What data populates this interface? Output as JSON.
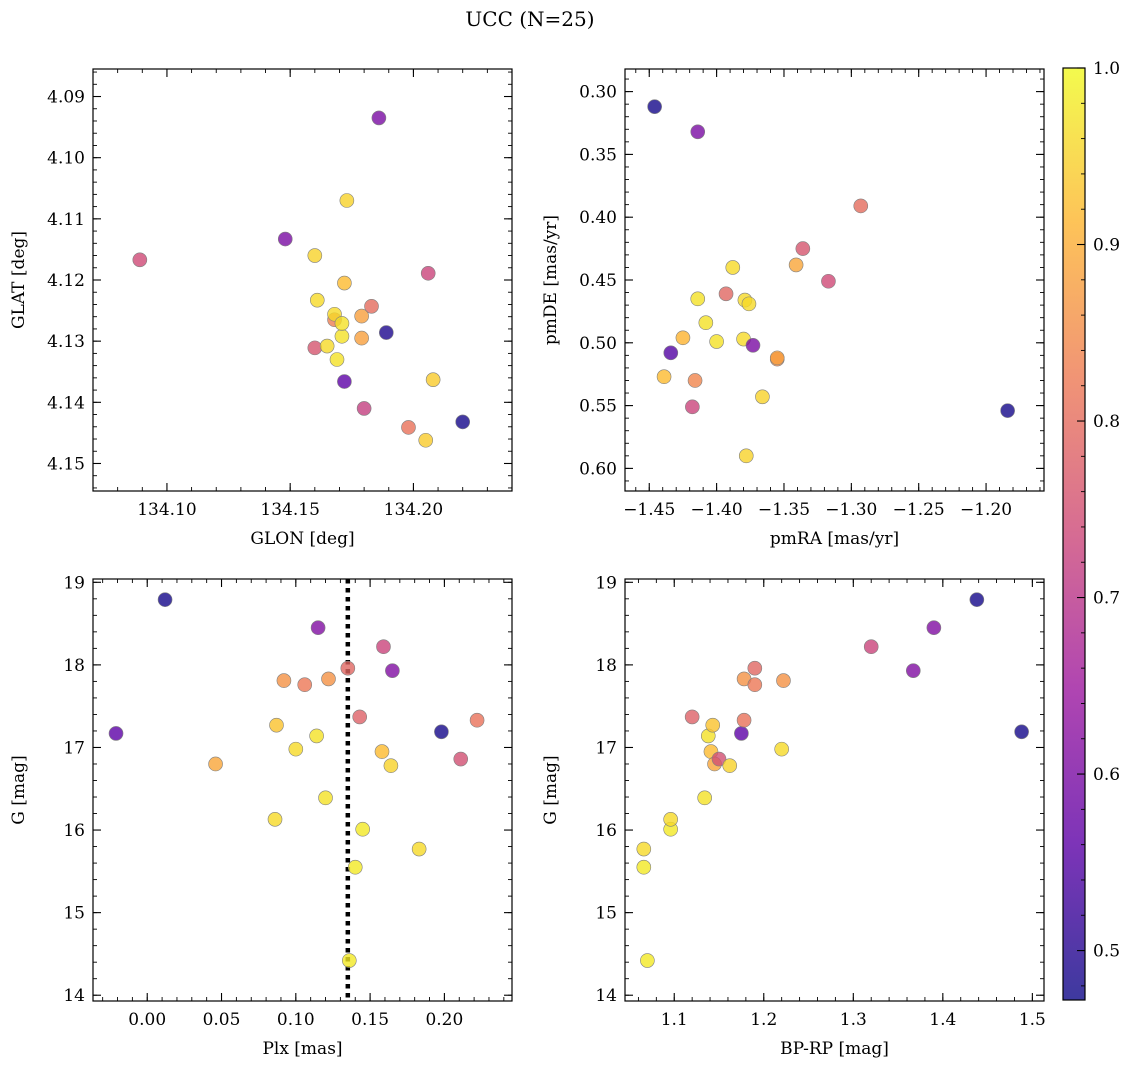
{
  "figure": {
    "title": "UCC (N=25)",
    "colormap": [
      "#0d0887",
      "#5c01a6",
      "#9c179e",
      "#cc4778",
      "#ed7953",
      "#fdb42f",
      "#f0f921"
    ],
    "marker_alpha": 0.8,
    "marker_edge_color": "#808080"
  },
  "chart_data": [
    {
      "type": "scatter",
      "xlabel": "GLON [deg]",
      "ylabel": "GLAT [deg]",
      "xlim": [
        134.07,
        134.24
      ],
      "ylim": [
        4.0855,
        4.1545
      ],
      "xticks": [
        134.1,
        134.15,
        134.2
      ],
      "xtick_labels": [
        "134.10",
        "134.15",
        "134.20"
      ],
      "yticks": [
        4.09,
        4.1,
        4.11,
        4.12,
        4.13,
        4.14,
        4.15
      ],
      "ytick_labels": [
        "4.09",
        "4.10",
        "4.11",
        "4.12",
        "4.13",
        "4.14",
        "4.15"
      ],
      "points": [
        {
          "x": 134.089,
          "y": 4.1167,
          "c": 0.74
        },
        {
          "x": 134.148,
          "y": 4.1133,
          "c": 0.6
        },
        {
          "x": 134.16,
          "y": 4.116,
          "c": 0.95
        },
        {
          "x": 134.16,
          "y": 4.1311,
          "c": 0.76
        },
        {
          "x": 134.161,
          "y": 4.1233,
          "c": 0.96
        },
        {
          "x": 134.165,
          "y": 4.1308,
          "c": 0.96
        },
        {
          "x": 134.168,
          "y": 4.1265,
          "c": 0.83
        },
        {
          "x": 134.168,
          "y": 4.1256,
          "c": 0.96
        },
        {
          "x": 134.169,
          "y": 4.133,
          "c": 0.97
        },
        {
          "x": 134.171,
          "y": 4.1292,
          "c": 0.97
        },
        {
          "x": 134.171,
          "y": 4.1271,
          "c": 0.97
        },
        {
          "x": 134.172,
          "y": 4.1366,
          "c": 0.56
        },
        {
          "x": 134.172,
          "y": 4.1205,
          "c": 0.92
        },
        {
          "x": 134.173,
          "y": 4.107,
          "c": 0.95
        },
        {
          "x": 134.179,
          "y": 4.1295,
          "c": 0.88
        },
        {
          "x": 134.179,
          "y": 4.1259,
          "c": 0.88
        },
        {
          "x": 134.18,
          "y": 4.141,
          "c": 0.72
        },
        {
          "x": 134.183,
          "y": 4.1243,
          "c": 0.8
        },
        {
          "x": 134.186,
          "y": 4.0935,
          "c": 0.6
        },
        {
          "x": 134.189,
          "y": 4.1286,
          "c": 0.49
        },
        {
          "x": 134.198,
          "y": 4.1441,
          "c": 0.81
        },
        {
          "x": 134.205,
          "y": 4.1462,
          "c": 0.94
        },
        {
          "x": 134.206,
          "y": 4.1189,
          "c": 0.73
        },
        {
          "x": 134.208,
          "y": 4.1363,
          "c": 0.94
        },
        {
          "x": 134.22,
          "y": 4.1432,
          "c": 0.48
        }
      ]
    },
    {
      "type": "scatter",
      "xlabel": "pmRA [mas/yr]",
      "ylabel": "pmDE [mas/yr]",
      "xlim": [
        -1.468,
        -1.157
      ],
      "ylim": [
        0.282,
        0.618
      ],
      "xticks": [
        -1.45,
        -1.4,
        -1.35,
        -1.3,
        -1.25,
        -1.2
      ],
      "xtick_labels": [
        "−1.45",
        "−1.40",
        "−1.35",
        "−1.30",
        "−1.25",
        "−1.20"
      ],
      "yticks": [
        0.3,
        0.35,
        0.4,
        0.45,
        0.5,
        0.55,
        0.6
      ],
      "ytick_labels": [
        "0.30",
        "0.35",
        "0.40",
        "0.45",
        "0.50",
        "0.55",
        "0.60"
      ],
      "points": [
        {
          "x": -1.446,
          "y": 0.312,
          "c": 0.48
        },
        {
          "x": -1.439,
          "y": 0.527,
          "c": 0.92
        },
        {
          "x": -1.434,
          "y": 0.508,
          "c": 0.55
        },
        {
          "x": -1.425,
          "y": 0.496,
          "c": 0.91
        },
        {
          "x": -1.418,
          "y": 0.551,
          "c": 0.73
        },
        {
          "x": -1.416,
          "y": 0.53,
          "c": 0.84
        },
        {
          "x": -1.414,
          "y": 0.332,
          "c": 0.6
        },
        {
          "x": -1.414,
          "y": 0.465,
          "c": 0.97
        },
        {
          "x": -1.408,
          "y": 0.484,
          "c": 0.97
        },
        {
          "x": -1.4,
          "y": 0.499,
          "c": 0.97
        },
        {
          "x": -1.393,
          "y": 0.461,
          "c": 0.79
        },
        {
          "x": -1.388,
          "y": 0.44,
          "c": 0.96
        },
        {
          "x": -1.38,
          "y": 0.497,
          "c": 0.96
        },
        {
          "x": -1.379,
          "y": 0.466,
          "c": 0.96
        },
        {
          "x": -1.378,
          "y": 0.59,
          "c": 0.95
        },
        {
          "x": -1.376,
          "y": 0.469,
          "c": 0.96
        },
        {
          "x": -1.373,
          "y": 0.502,
          "c": 0.6
        },
        {
          "x": -1.366,
          "y": 0.543,
          "c": 0.95
        },
        {
          "x": -1.355,
          "y": 0.513,
          "c": 0.85
        },
        {
          "x": -1.355,
          "y": 0.512,
          "c": 0.88
        },
        {
          "x": -1.341,
          "y": 0.438,
          "c": 0.89
        },
        {
          "x": -1.336,
          "y": 0.425,
          "c": 0.76
        },
        {
          "x": -1.317,
          "y": 0.451,
          "c": 0.74
        },
        {
          "x": -1.293,
          "y": 0.391,
          "c": 0.8
        },
        {
          "x": -1.184,
          "y": 0.554,
          "c": 0.48
        }
      ]
    },
    {
      "type": "scatter",
      "xlabel": "Plx [mas]",
      "ylabel": "G [mag]",
      "xlim": [
        -0.0365,
        0.2455
      ],
      "ylim": [
        19.04,
        13.93
      ],
      "vline": 0.135,
      "xticks": [
        0.0,
        0.05,
        0.1,
        0.15,
        0.2
      ],
      "xtick_labels": [
        "0.00",
        "0.05",
        "0.10",
        "0.15",
        "0.20"
      ],
      "yticks": [
        14,
        15,
        16,
        17,
        18,
        19
      ],
      "ytick_labels": [
        "14",
        "15",
        "16",
        "17",
        "18",
        "19"
      ],
      "points": [
        {
          "x": -0.021,
          "y": 17.17,
          "c": 0.56
        },
        {
          "x": 0.012,
          "y": 18.79,
          "c": 0.48
        },
        {
          "x": 0.046,
          "y": 16.8,
          "c": 0.89
        },
        {
          "x": 0.086,
          "y": 16.13,
          "c": 0.96
        },
        {
          "x": 0.087,
          "y": 17.27,
          "c": 0.93
        },
        {
          "x": 0.092,
          "y": 17.81,
          "c": 0.86
        },
        {
          "x": 0.1,
          "y": 16.98,
          "c": 0.96
        },
        {
          "x": 0.106,
          "y": 17.76,
          "c": 0.82
        },
        {
          "x": 0.114,
          "y": 17.14,
          "c": 0.97
        },
        {
          "x": 0.115,
          "y": 18.45,
          "c": 0.61
        },
        {
          "x": 0.12,
          "y": 16.39,
          "c": 0.97
        },
        {
          "x": 0.122,
          "y": 17.83,
          "c": 0.86
        },
        {
          "x": 0.135,
          "y": 17.96,
          "c": 0.79
        },
        {
          "x": 0.136,
          "y": 14.42,
          "c": 0.98
        },
        {
          "x": 0.14,
          "y": 15.55,
          "c": 0.98
        },
        {
          "x": 0.143,
          "y": 17.37,
          "c": 0.78
        },
        {
          "x": 0.145,
          "y": 16.01,
          "c": 0.98
        },
        {
          "x": 0.158,
          "y": 16.95,
          "c": 0.92
        },
        {
          "x": 0.159,
          "y": 18.22,
          "c": 0.73
        },
        {
          "x": 0.164,
          "y": 16.78,
          "c": 0.95
        },
        {
          "x": 0.165,
          "y": 17.93,
          "c": 0.61
        },
        {
          "x": 0.183,
          "y": 15.77,
          "c": 0.96
        },
        {
          "x": 0.198,
          "y": 17.19,
          "c": 0.48
        },
        {
          "x": 0.211,
          "y": 16.86,
          "c": 0.75
        },
        {
          "x": 0.222,
          "y": 17.33,
          "c": 0.81
        }
      ]
    },
    {
      "type": "scatter",
      "xlabel": "BP-RP [mag]",
      "ylabel": "G [mag]",
      "xlim": [
        1.045,
        1.513
      ],
      "ylim": [
        19.04,
        13.93
      ],
      "xticks": [
        1.1,
        1.2,
        1.3,
        1.4,
        1.5
      ],
      "xtick_labels": [
        "1.1",
        "1.2",
        "1.3",
        "1.4",
        "1.5"
      ],
      "yticks": [
        14,
        15,
        16,
        17,
        18,
        19
      ],
      "ytick_labels": [
        "14",
        "15",
        "16",
        "17",
        "18",
        "19"
      ],
      "points": [
        {
          "x": 1.07,
          "y": 14.42,
          "c": 0.98
        },
        {
          "x": 1.066,
          "y": 15.55,
          "c": 0.98
        },
        {
          "x": 1.066,
          "y": 15.77,
          "c": 0.96
        },
        {
          "x": 1.096,
          "y": 16.01,
          "c": 0.98
        },
        {
          "x": 1.096,
          "y": 16.13,
          "c": 0.96
        },
        {
          "x": 1.134,
          "y": 16.39,
          "c": 0.97
        },
        {
          "x": 1.12,
          "y": 17.37,
          "c": 0.78
        },
        {
          "x": 1.138,
          "y": 17.14,
          "c": 0.97
        },
        {
          "x": 1.141,
          "y": 16.95,
          "c": 0.92
        },
        {
          "x": 1.143,
          "y": 17.27,
          "c": 0.93
        },
        {
          "x": 1.145,
          "y": 16.8,
          "c": 0.89
        },
        {
          "x": 1.15,
          "y": 16.86,
          "c": 0.75
        },
        {
          "x": 1.162,
          "y": 16.78,
          "c": 0.95
        },
        {
          "x": 1.175,
          "y": 17.17,
          "c": 0.56
        },
        {
          "x": 1.178,
          "y": 17.33,
          "c": 0.81
        },
        {
          "x": 1.178,
          "y": 17.83,
          "c": 0.86
        },
        {
          "x": 1.19,
          "y": 17.76,
          "c": 0.82
        },
        {
          "x": 1.19,
          "y": 17.96,
          "c": 0.79
        },
        {
          "x": 1.22,
          "y": 16.98,
          "c": 0.96
        },
        {
          "x": 1.222,
          "y": 17.81,
          "c": 0.86
        },
        {
          "x": 1.32,
          "y": 18.22,
          "c": 0.73
        },
        {
          "x": 1.367,
          "y": 17.93,
          "c": 0.61
        },
        {
          "x": 1.39,
          "y": 18.45,
          "c": 0.61
        },
        {
          "x": 1.438,
          "y": 18.79,
          "c": 0.48
        },
        {
          "x": 1.488,
          "y": 17.19,
          "c": 0.48
        }
      ]
    }
  ],
  "colorbar": {
    "vmin": 0.472,
    "vmax": 1.0,
    "ticks": [
      0.5,
      0.6,
      0.7,
      0.8,
      0.9,
      1.0
    ],
    "tick_labels": [
      "0.5",
      "0.6",
      "0.7",
      "0.8",
      "0.9",
      "1.0"
    ]
  }
}
